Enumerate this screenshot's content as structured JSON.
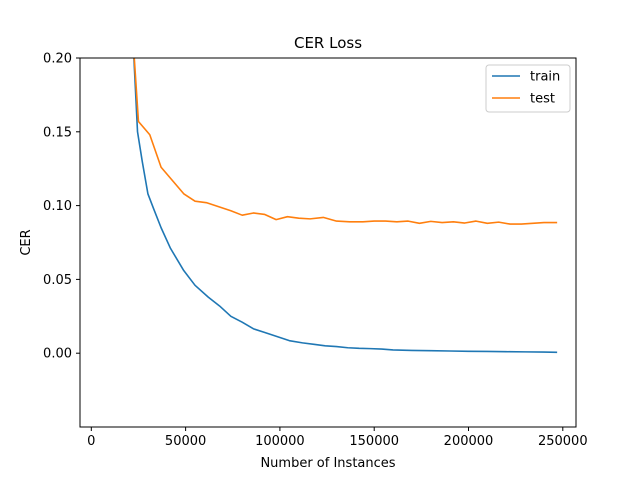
{
  "chart_data": {
    "type": "line",
    "title": "CER Loss",
    "xlabel": "Number of Instances",
    "ylabel": "CER",
    "xlim": [
      -6000,
      257000
    ],
    "ylim": [
      -0.05,
      0.2
    ],
    "xticks": [
      0,
      50000,
      100000,
      150000,
      200000,
      250000
    ],
    "xtick_labels": [
      "0",
      "50000",
      "100000",
      "150000",
      "200000",
      "250000"
    ],
    "yticks": [
      0.0,
      0.05,
      0.1,
      0.15,
      0.2
    ],
    "ytick_labels": [
      "0.00",
      "0.05",
      "0.10",
      "0.15",
      "0.20"
    ],
    "grid": false,
    "legend_position": "top-right",
    "series": [
      {
        "name": "train",
        "color": "#1f77b4",
        "x": [
          22000,
          24500,
          27000,
          30000,
          33000,
          37000,
          42000,
          49000,
          55000,
          62000,
          68000,
          74000,
          80000,
          86000,
          92000,
          98000,
          105000,
          112000,
          118000,
          124000,
          130000,
          136000,
          142000,
          148000,
          154000,
          160000,
          170000,
          180000,
          190000,
          200000,
          210000,
          220000,
          230000,
          240000,
          247000
        ],
        "y": [
          0.215,
          0.15,
          0.13,
          0.108,
          0.098,
          0.085,
          0.071,
          0.056,
          0.046,
          0.038,
          0.032,
          0.025,
          0.021,
          0.0165,
          0.014,
          0.0115,
          0.0085,
          0.007,
          0.006,
          0.005,
          0.0045,
          0.0037,
          0.0033,
          0.0031,
          0.0028,
          0.0022,
          0.0019,
          0.0017,
          0.0015,
          0.0013,
          0.0012,
          0.001,
          0.0009,
          0.0008,
          0.0006
        ]
      },
      {
        "name": "test",
        "color": "#ff7f0e",
        "x": [
          22000,
          25000,
          31000,
          37000,
          43000,
          49000,
          55000,
          61000,
          67000,
          74000,
          80000,
          86000,
          92000,
          98000,
          104000,
          110000,
          116000,
          123000,
          130000,
          137000,
          144000,
          150000,
          156000,
          162000,
          168000,
          174000,
          180000,
          186000,
          192000,
          198000,
          204000,
          210000,
          216000,
          222000,
          228000,
          234000,
          240000,
          247000
        ],
        "y": [
          0.215,
          0.157,
          0.148,
          0.126,
          0.117,
          0.108,
          0.103,
          0.102,
          0.0995,
          0.0965,
          0.0935,
          0.095,
          0.094,
          0.0905,
          0.0925,
          0.0915,
          0.091,
          0.092,
          0.0895,
          0.089,
          0.089,
          0.0895,
          0.0895,
          0.089,
          0.0895,
          0.088,
          0.0893,
          0.0885,
          0.089,
          0.0882,
          0.0895,
          0.088,
          0.0888,
          0.0875,
          0.0875,
          0.088,
          0.0885,
          0.0885
        ]
      }
    ]
  }
}
